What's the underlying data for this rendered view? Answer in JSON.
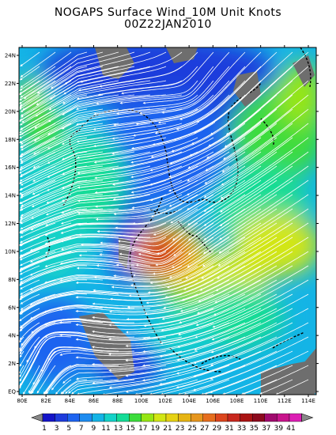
{
  "title": "NOGAPS Surface Wind_10M Unit Knots",
  "subtitle": "00Z22JAN2010",
  "map": {
    "lon_range": [
      80,
      115
    ],
    "lat_range": [
      0,
      25
    ],
    "lon_ticks": [
      "80E",
      "82E",
      "84E",
      "86E",
      "88E",
      "100E",
      "102E",
      "104E",
      "106E",
      "108E",
      "110E",
      "112E",
      "114E"
    ],
    "lat_ticks": [
      "EQ",
      "2N",
      "4N",
      "6N",
      "8N",
      "10N",
      "12N",
      "14N",
      "16N",
      "18N",
      "20N",
      "22N",
      "24N"
    ]
  },
  "colorbar": {
    "labels": [
      "1",
      "3",
      "5",
      "7",
      "9",
      "11",
      "13",
      "15",
      "17",
      "19",
      "21",
      "23",
      "25",
      "27",
      "29",
      "31",
      "33",
      "35",
      "37",
      "39",
      "41"
    ],
    "colors": [
      "#1414c8",
      "#1e3cdc",
      "#1e64f0",
      "#1e8cf0",
      "#14b4e6",
      "#14d2c8",
      "#14dc96",
      "#3cdc3c",
      "#96e614",
      "#d2e614",
      "#e6d214",
      "#e6b414",
      "#e6961e",
      "#e66e1e",
      "#dc461e",
      "#c8281e",
      "#aa1414",
      "#8c0a1e",
      "#a00a6e",
      "#c8148c",
      "#dc1eb4"
    ]
  },
  "chart_data": {
    "type": "heatmap",
    "title": "NOGAPS Surface Wind_10M Unit Knots",
    "subtitle": "00Z22JAN2010",
    "variable": "Surface wind speed at 10 m",
    "units": "Knots",
    "x_range": [
      80,
      115
    ],
    "y_range": [
      0,
      25
    ],
    "color_scale": [
      1,
      41
    ],
    "max_region": "Gulf of Thailand, near 102E 9N",
    "overlay": "white streamlines with arrowheads"
  }
}
